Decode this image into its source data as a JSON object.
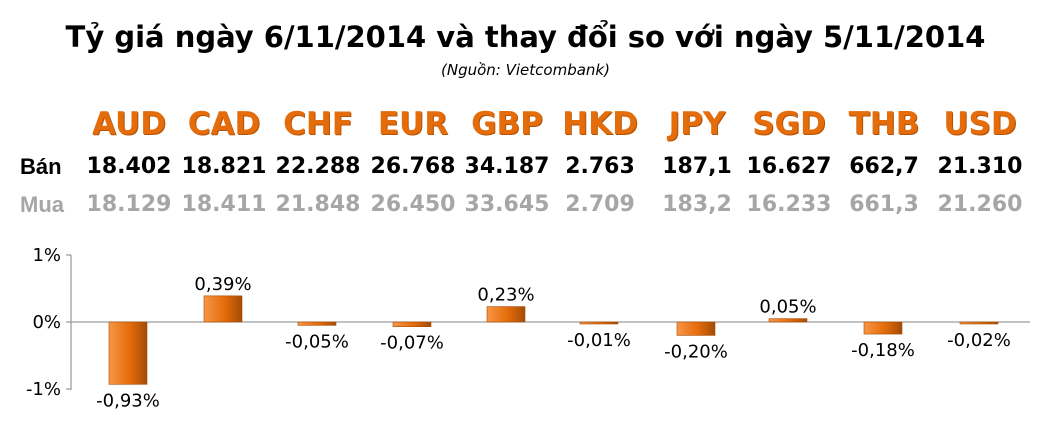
{
  "title": "Tỷ giá ngày 6/11/2014 và thay đổi so với ngày 5/11/2014",
  "source": "(Nguồn: Vietcombank)",
  "row_labels": {
    "sell": "Bán",
    "buy": "Mua"
  },
  "currencies": [
    "AUD",
    "CAD",
    "CHF",
    "EUR",
    "GBP",
    "HKD",
    "JPY",
    "SGD",
    "THB",
    "USD"
  ],
  "sell": [
    "18.402",
    "18.821",
    "22.288",
    "26.768",
    "34.187",
    "2.763",
    "187,1",
    "16.627",
    "662,7",
    "21.310"
  ],
  "buy": [
    "18.129",
    "18.411",
    "21.848",
    "26.450",
    "33.645",
    "2.709",
    "183,2",
    "16.233",
    "661,3",
    "21.260"
  ],
  "colors": {
    "currency": "#e46c0a",
    "bar": "#e46c0a",
    "buy_text": "#a6a6a6",
    "sell_text": "#000000"
  },
  "chart_data": {
    "type": "bar",
    "categories": [
      "AUD",
      "CAD",
      "CHF",
      "EUR",
      "GBP",
      "HKD",
      "JPY",
      "SGD",
      "THB",
      "USD"
    ],
    "values": [
      -0.93,
      0.39,
      -0.05,
      -0.07,
      0.23,
      -0.01,
      -0.2,
      0.05,
      -0.18,
      -0.02
    ],
    "data_labels": [
      "-0,93%",
      "0,39%",
      "-0,05%",
      "-0,07%",
      "0,23%",
      "-0,01%",
      "-0,20%",
      "0,05%",
      "-0,18%",
      "-0,02%"
    ],
    "ylim": [
      -1,
      1
    ],
    "yticks": [
      "-1%",
      "0%",
      "1%"
    ],
    "grid": false
  }
}
